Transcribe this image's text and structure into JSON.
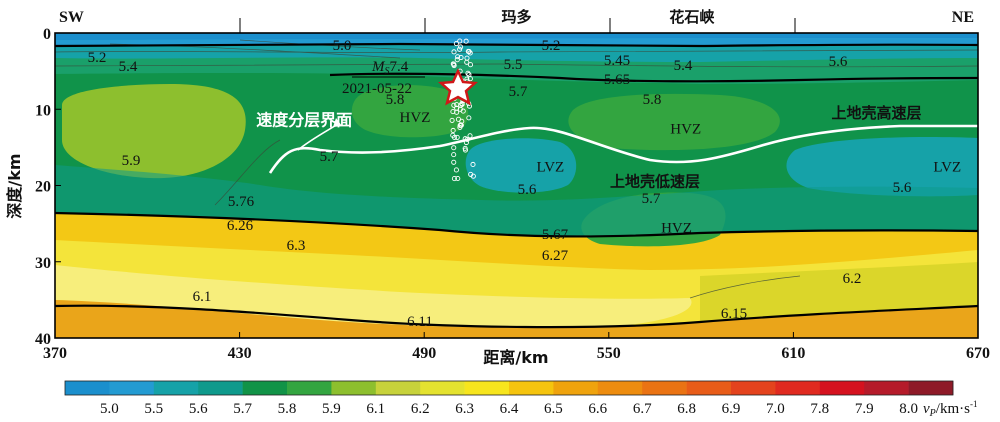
{
  "chart_data": {
    "type": "heatmap",
    "xlabel": "距离/km",
    "ylabel": "深度/km",
    "xlim": [
      370,
      670
    ],
    "ylim": [
      0,
      40
    ],
    "x_ticks": [
      370,
      430,
      490,
      550,
      610,
      670
    ],
    "y_ticks": [
      0,
      10,
      20,
      30,
      40
    ],
    "top_labels": [
      {
        "text": "SW",
        "x": 370
      },
      {
        "text": "玛多",
        "x": 520
      },
      {
        "text": "花石峡",
        "x": 577
      },
      {
        "text": "NE",
        "x": 670
      }
    ],
    "earthquake": {
      "magnitude": "MS7.4",
      "mag_main": "M",
      "mag_sub": "S",
      "mag_value": "7.4",
      "date": "2021-05-22",
      "x": 501,
      "y": 7
    },
    "region_labels": [
      {
        "text": "HVZ",
        "x": 487,
        "y": 11
      },
      {
        "text": "HVZ",
        "x": 575,
        "y": 12.5
      },
      {
        "text": "LVZ",
        "x": 531,
        "y": 17.5
      },
      {
        "text": "LVZ",
        "x": 660,
        "y": 17.5
      },
      {
        "text": "HVZ",
        "x": 572,
        "y": 25.5
      }
    ],
    "annotations": [
      {
        "text": "速度分层界面",
        "x": 451,
        "y": 11.5
      },
      {
        "text": "上地壳高速层",
        "x": 637,
        "y": 10.5
      },
      {
        "text": "上地壳低速层",
        "x": 565,
        "y": 19.5
      }
    ],
    "contour_labels": [
      "5.0",
      "5.2",
      "5.2",
      "5.4",
      "5.45",
      "5.4",
      "5.5",
      "5.65",
      "5.6",
      "5.7",
      "5.8",
      "5.8",
      "5.7",
      "5.9",
      "5.6",
      "5.6",
      "5.7",
      "5.76",
      "6.26",
      "6.3",
      "5.67",
      "6.27",
      "6.1",
      "6.2",
      "6.11",
      "6.15"
    ],
    "colorbar": {
      "label_main": "v",
      "label_sub": "P",
      "label_unit": "/km·s",
      "label_exp": "-1",
      "values": [
        "5.0",
        "5.5",
        "5.6",
        "5.7",
        "5.8",
        "5.9",
        "6.1",
        "6.2",
        "6.3",
        "6.4",
        "6.5",
        "6.6",
        "6.7",
        "6.8",
        "6.9",
        "7.0",
        "7.8",
        "7.9",
        "8.0"
      ],
      "colors": [
        "#1b8fcd",
        "#239bd2",
        "#16a2a8",
        "#0f9a8c",
        "#119347",
        "#33a540",
        "#8dbf2e",
        "#c7d23b",
        "#e4e22f",
        "#f7e51d",
        "#f5c40e",
        "#efa30d",
        "#ed8c0f",
        "#ea7313",
        "#e85c18",
        "#e4431d",
        "#e02a20",
        "#d5121f",
        "#b51b2a",
        "#8e1a28"
      ]
    }
  }
}
